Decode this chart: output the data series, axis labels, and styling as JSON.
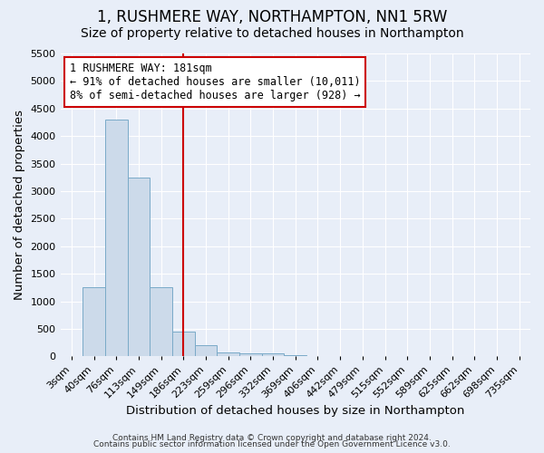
{
  "title": "1, RUSHMERE WAY, NORTHAMPTON, NN1 5RW",
  "subtitle": "Size of property relative to detached houses in Northampton",
  "xlabel": "Distribution of detached houses by size in Northampton",
  "ylabel": "Number of detached properties",
  "bar_color": "#ccdaea",
  "bar_edge_color": "#7aaac8",
  "background_color": "#e8eef8",
  "grid_color": "#ffffff",
  "categories": [
    "3sqm",
    "40sqm",
    "76sqm",
    "113sqm",
    "149sqm",
    "186sqm",
    "223sqm",
    "259sqm",
    "296sqm",
    "332sqm",
    "369sqm",
    "406sqm",
    "442sqm",
    "479sqm",
    "515sqm",
    "552sqm",
    "589sqm",
    "625sqm",
    "662sqm",
    "698sqm",
    "735sqm"
  ],
  "bar_heights": [
    0,
    1250,
    4300,
    3250,
    1250,
    450,
    200,
    75,
    55,
    50,
    30,
    15,
    10,
    5,
    3,
    2,
    1,
    1,
    0,
    0,
    0
  ],
  "red_line_index": 5,
  "ylim": [
    0,
    5500
  ],
  "yticks": [
    0,
    500,
    1000,
    1500,
    2000,
    2500,
    3000,
    3500,
    4000,
    4500,
    5000,
    5500
  ],
  "annotation_title": "1 RUSHMERE WAY: 181sqm",
  "annotation_line1": "← 91% of detached houses are smaller (10,011)",
  "annotation_line2": "8% of semi-detached houses are larger (928) →",
  "annotation_box_color": "#ffffff",
  "annotation_border_color": "#cc0000",
  "red_line_color": "#cc0000",
  "footnote1": "Contains HM Land Registry data © Crown copyright and database right 2024.",
  "footnote2": "Contains public sector information licensed under the Open Government Licence v3.0.",
  "title_fontsize": 12,
  "subtitle_fontsize": 10,
  "annotation_fontsize": 8.5,
  "tick_fontsize": 8,
  "label_fontsize": 9.5,
  "footnote_fontsize": 6.5
}
